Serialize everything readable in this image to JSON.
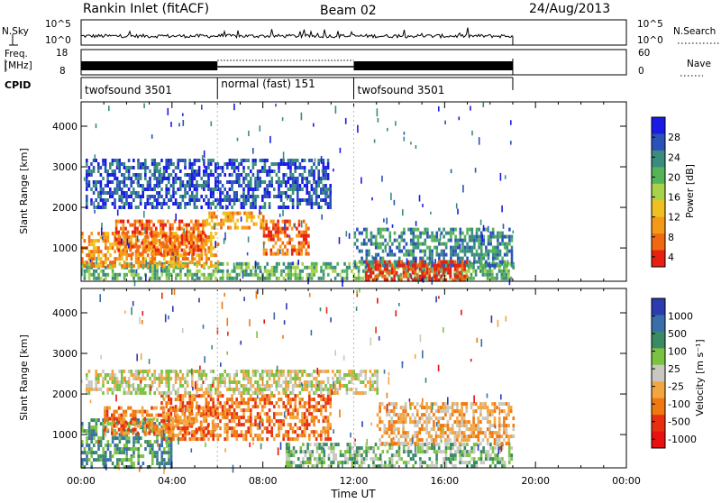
{
  "header": {
    "station": "Rankin Inlet (fitACF)",
    "beam": "Beam 02",
    "date": "24/Aug/2013"
  },
  "noise_panel": {
    "left_label": "N.Sky",
    "right_label": "N.Search",
    "left_ticks": [
      "10^5",
      "10^0"
    ],
    "right_ticks": [
      "10^5",
      "10^0"
    ]
  },
  "freq_panel": {
    "left_label_line1": "Freq.",
    "left_label_line2": "[MHz]",
    "right_label": "Nave",
    "left_ticks": [
      "18",
      "8"
    ],
    "right_ticks": [
      "60",
      "0"
    ]
  },
  "cpid_panel": {
    "label": "CPID",
    "segments": [
      {
        "name": "twofsound 3501",
        "start_hr": 0.0,
        "end_hr": 6.0
      },
      {
        "name": "normal (fast) 151",
        "start_hr": 6.0,
        "end_hr": 12.0
      },
      {
        "name": "twofsound 3501",
        "start_hr": 12.0,
        "end_hr": 19.0
      }
    ]
  },
  "power_panel": {
    "ylabel": "Slant Range [km]",
    "yticks": [
      "4000",
      "3000",
      "2000",
      "1000"
    ],
    "colorbar_label": "Power [dB]",
    "colorbar_ticks": [
      "28",
      "24",
      "20",
      "16",
      "12",
      "8",
      "4"
    ],
    "colors": [
      "#1a1ae6",
      "#2a52b8",
      "#3a8c7e",
      "#56b35a",
      "#a8d24a",
      "#f0c020",
      "#f59a18",
      "#f06810",
      "#e82010"
    ]
  },
  "velocity_panel": {
    "ylabel": "Slant Range [km]",
    "yticks": [
      "4000",
      "3000",
      "2000",
      "1000"
    ],
    "colorbar_label": "Velocity [m s⁻¹]",
    "colorbar_ticks": [
      "1000",
      "500",
      "100",
      "25",
      "-25",
      "-100",
      "-500",
      "-1000"
    ],
    "colors": [
      "#2a3cb0",
      "#3a6ea8",
      "#3a8a66",
      "#7ac242",
      "#c8c8c0",
      "#f2a640",
      "#f07810",
      "#e83010",
      "#e81010"
    ]
  },
  "x_axis": {
    "label": "Time UT",
    "ticks": [
      "00:00",
      "04:00",
      "08:00",
      "12:00",
      "16:00",
      "20:00",
      "00:00"
    ]
  },
  "chart_data": {
    "type": "heatmap",
    "title": "Rankin Inlet (fitACF)",
    "x_range_hours": [
      0,
      24
    ],
    "y_range_km": [
      180,
      4600
    ],
    "data_end_hour": 19.0,
    "xlabel": "Time UT",
    "ylabel": "Slant Range [km]",
    "power_echo_regions": [
      {
        "t0": 0.0,
        "t1": 19.0,
        "r0": 250,
        "r1": 650,
        "level": 3
      },
      {
        "t0": 0.0,
        "t1": 6.0,
        "r0": 600,
        "r1": 1400,
        "level": 6
      },
      {
        "t0": 1.5,
        "t1": 5.5,
        "r0": 900,
        "r1": 1700,
        "level": 7
      },
      {
        "t0": 5.5,
        "t1": 8.0,
        "r0": 1500,
        "r1": 1900,
        "level": 6
      },
      {
        "t0": 8.0,
        "t1": 10.0,
        "r0": 900,
        "r1": 1700,
        "level": 7
      },
      {
        "t0": 0.2,
        "t1": 11.0,
        "r0": 2000,
        "r1": 3200,
        "level": 1
      },
      {
        "t0": 12.0,
        "t1": 19.0,
        "r0": 600,
        "r1": 1500,
        "level": 2
      },
      {
        "t0": 12.5,
        "t1": 17.0,
        "r0": 250,
        "r1": 700,
        "level": 8
      }
    ],
    "velocity_echo_regions": [
      {
        "t0": 0.0,
        "t1": 4.0,
        "r0": 200,
        "r1": 1400,
        "level": 2
      },
      {
        "t0": 1.0,
        "t1": 6.0,
        "r0": 1000,
        "r1": 1700,
        "level": 6
      },
      {
        "t0": 3.5,
        "t1": 11.0,
        "r0": 900,
        "r1": 2000,
        "level": 6
      },
      {
        "t0": 0.2,
        "t1": 13.0,
        "r0": 2000,
        "r1": 2600,
        "level": 4
      },
      {
        "t0": 9.0,
        "t1": 19.0,
        "r0": 250,
        "r1": 800,
        "level": 3
      },
      {
        "t0": 13.0,
        "t1": 19.0,
        "r0": 800,
        "r1": 1800,
        "level": 5
      }
    ]
  }
}
